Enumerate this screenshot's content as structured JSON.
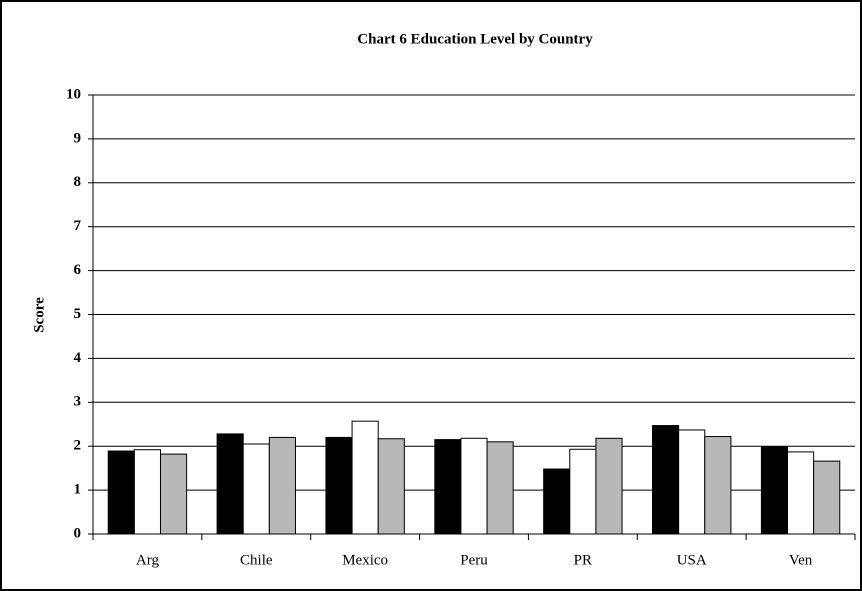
{
  "chart_data": {
    "type": "bar",
    "title": "Chart 6  Education Level by Country",
    "y_label": "Score",
    "categories": [
      "Arg",
      "Chile",
      "Mexico",
      "Peru",
      "PR",
      "USA",
      "Ven"
    ],
    "series": [
      {
        "color": "#000000",
        "values": [
          1.89,
          2.28,
          2.2,
          2.15,
          1.48,
          2.47,
          1.98
        ]
      },
      {
        "color": "#ffffff",
        "values": [
          1.92,
          2.05,
          2.57,
          2.18,
          1.93,
          2.37,
          1.87
        ]
      },
      {
        "color": "#b8b8b8",
        "values": [
          1.82,
          2.2,
          2.17,
          2.1,
          2.18,
          2.22,
          1.66
        ]
      }
    ],
    "ylim": [
      0,
      10
    ],
    "yticks": [
      0,
      1,
      2,
      3,
      4,
      5,
      6,
      7,
      8,
      9,
      10
    ],
    "grid": true
  }
}
